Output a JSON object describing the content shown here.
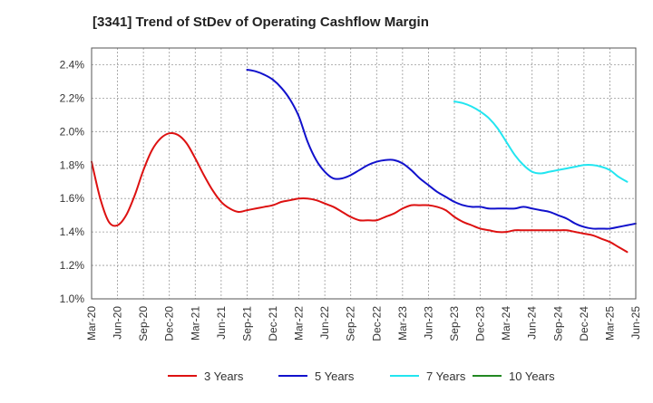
{
  "chart_data": {
    "type": "line",
    "title": "[3341]  Trend of StDev of Operating Cashflow Margin",
    "xlabel": "",
    "ylabel": "",
    "ylim": [
      1.0,
      2.5
    ],
    "y_ticks": [
      "1.0%",
      "1.2%",
      "1.4%",
      "1.6%",
      "1.8%",
      "2.0%",
      "2.2%",
      "2.4%"
    ],
    "x_ticks": [
      "Mar-20",
      "Jun-20",
      "Sep-20",
      "Dec-20",
      "Mar-21",
      "Jun-21",
      "Sep-21",
      "Dec-21",
      "Mar-22",
      "Jun-22",
      "Sep-22",
      "Dec-22",
      "Mar-23",
      "Jun-23",
      "Sep-23",
      "Dec-23",
      "Mar-24",
      "Jun-24",
      "Sep-24",
      "Dec-24",
      "Mar-25",
      "Jun-25"
    ],
    "grid": true,
    "legend_position": "bottom",
    "series": [
      {
        "name": "3 Years",
        "color": "#dd1111",
        "start_month_index": 0,
        "values": [
          1.82,
          1.6,
          1.46,
          1.44,
          1.5,
          1.62,
          1.77,
          1.89,
          1.96,
          1.99,
          1.98,
          1.93,
          1.84,
          1.74,
          1.65,
          1.58,
          1.54,
          1.52,
          1.53,
          1.54,
          1.55,
          1.56,
          1.58,
          1.59,
          1.6,
          1.6,
          1.59,
          1.57,
          1.55,
          1.52,
          1.49,
          1.47,
          1.47,
          1.47,
          1.49,
          1.51,
          1.54,
          1.56,
          1.56,
          1.56,
          1.55,
          1.53,
          1.49,
          1.46,
          1.44,
          1.42,
          1.41,
          1.4,
          1.4,
          1.41,
          1.41,
          1.41,
          1.41,
          1.41,
          1.41,
          1.41,
          1.4,
          1.39,
          1.38,
          1.36,
          1.34,
          1.31,
          1.28
        ]
      },
      {
        "name": "5 Years",
        "color": "#1111cc",
        "start_month_index": 18,
        "values": [
          2.37,
          2.36,
          2.34,
          2.31,
          2.26,
          2.19,
          2.09,
          1.94,
          1.83,
          1.76,
          1.72,
          1.72,
          1.74,
          1.77,
          1.8,
          1.82,
          1.83,
          1.83,
          1.81,
          1.77,
          1.72,
          1.68,
          1.64,
          1.61,
          1.58,
          1.56,
          1.55,
          1.55,
          1.54,
          1.54,
          1.54,
          1.54,
          1.55,
          1.54,
          1.53,
          1.52,
          1.5,
          1.48,
          1.45,
          1.43,
          1.42,
          1.42,
          1.42,
          1.43,
          1.44,
          1.45
        ]
      },
      {
        "name": "7 Years",
        "color": "#22e5f0",
        "start_month_index": 42,
        "values": [
          2.18,
          2.17,
          2.15,
          2.12,
          2.08,
          2.02,
          1.94,
          1.86,
          1.8,
          1.76,
          1.75,
          1.76,
          1.77,
          1.78,
          1.79,
          1.8,
          1.8,
          1.79,
          1.77,
          1.73,
          1.7
        ]
      },
      {
        "name": "10 Years",
        "color": "#228822",
        "start_month_index": 0,
        "values": []
      }
    ]
  }
}
